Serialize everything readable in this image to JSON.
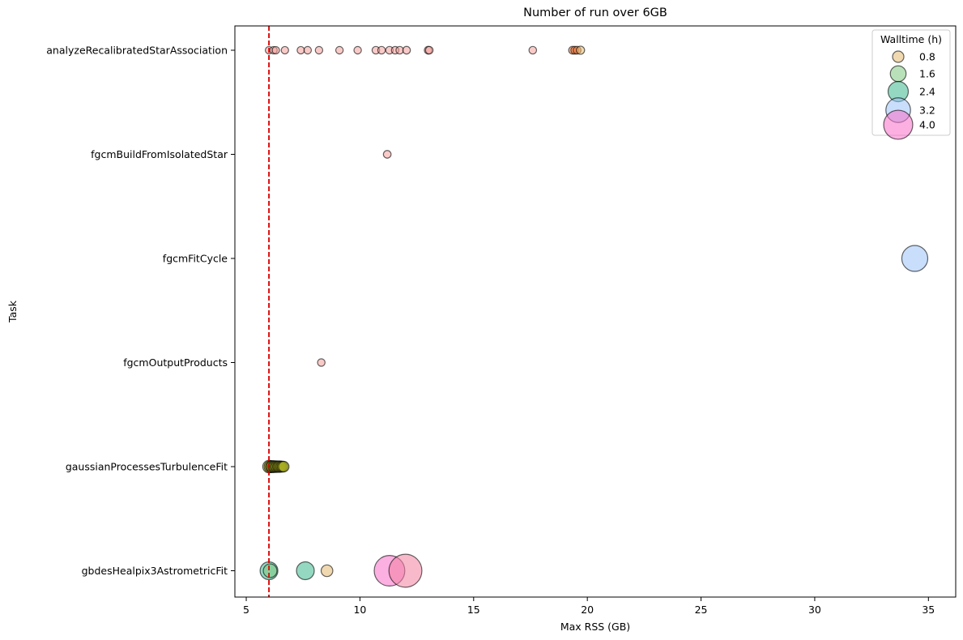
{
  "chart_data": {
    "type": "scatter",
    "title": "Number of run over 6GB",
    "xlabel": "Max RSS (GB)",
    "ylabel": "Task",
    "xlim": [
      4.5,
      36.2
    ],
    "xticks": [
      5,
      10,
      15,
      20,
      25,
      30,
      35
    ],
    "xtick_labels": [
      "5",
      "10",
      "15",
      "20",
      "25",
      "30",
      "35"
    ],
    "categories": [
      "analyzeRecalibratedStarAssociation",
      "fgcmBuildFromIsolatedStar",
      "fgcmFitCycle",
      "fgcmOutputProducts",
      "gaussianProcessesTurbulenceFit",
      "gbdesHealpix3AstrometricFit"
    ],
    "threshold": {
      "value": 6,
      "color": "#e00000",
      "style": "dashed"
    },
    "colors": {
      "red": "#f4a09a",
      "orange": "#f47a3c",
      "tan": "#e3b870",
      "olive": "#a8ad20",
      "teal": "#3db890",
      "sky": "#9cc2f8",
      "pink": "#f870c8",
      "rose": "#f27fa0",
      "lightgreen": "#7fc97f"
    },
    "points": [
      {
        "task": "analyzeRecalibratedStarAssociation",
        "x": 6.0,
        "walltime": 0.02,
        "color": "red"
      },
      {
        "task": "analyzeRecalibratedStarAssociation",
        "x": 6.2,
        "walltime": 0.02,
        "color": "red"
      },
      {
        "task": "analyzeRecalibratedStarAssociation",
        "x": 6.3,
        "walltime": 0.02,
        "color": "red"
      },
      {
        "task": "analyzeRecalibratedStarAssociation",
        "x": 6.7,
        "walltime": 0.02,
        "color": "red"
      },
      {
        "task": "analyzeRecalibratedStarAssociation",
        "x": 7.4,
        "walltime": 0.02,
        "color": "red"
      },
      {
        "task": "analyzeRecalibratedStarAssociation",
        "x": 7.7,
        "walltime": 0.03,
        "color": "red"
      },
      {
        "task": "analyzeRecalibratedStarAssociation",
        "x": 8.2,
        "walltime": 0.03,
        "color": "red"
      },
      {
        "task": "analyzeRecalibratedStarAssociation",
        "x": 9.1,
        "walltime": 0.03,
        "color": "red"
      },
      {
        "task": "analyzeRecalibratedStarAssociation",
        "x": 9.9,
        "walltime": 0.03,
        "color": "red"
      },
      {
        "task": "analyzeRecalibratedStarAssociation",
        "x": 10.7,
        "walltime": 0.05,
        "color": "red"
      },
      {
        "task": "analyzeRecalibratedStarAssociation",
        "x": 10.95,
        "walltime": 0.05,
        "color": "red"
      },
      {
        "task": "analyzeRecalibratedStarAssociation",
        "x": 11.3,
        "walltime": 0.05,
        "color": "red"
      },
      {
        "task": "analyzeRecalibratedStarAssociation",
        "x": 11.55,
        "walltime": 0.04,
        "color": "red"
      },
      {
        "task": "analyzeRecalibratedStarAssociation",
        "x": 11.75,
        "walltime": 0.05,
        "color": "red"
      },
      {
        "task": "analyzeRecalibratedStarAssociation",
        "x": 12.05,
        "walltime": 0.06,
        "color": "red"
      },
      {
        "task": "analyzeRecalibratedStarAssociation",
        "x": 13.0,
        "walltime": 0.06,
        "color": "red"
      },
      {
        "task": "analyzeRecalibratedStarAssociation",
        "x": 13.05,
        "walltime": 0.05,
        "color": "red"
      },
      {
        "task": "analyzeRecalibratedStarAssociation",
        "x": 17.6,
        "walltime": 0.05,
        "color": "red"
      },
      {
        "task": "analyzeRecalibratedStarAssociation",
        "x": 19.35,
        "walltime": 0.08,
        "color": "orange"
      },
      {
        "task": "analyzeRecalibratedStarAssociation",
        "x": 19.45,
        "walltime": 0.09,
        "color": "orange"
      },
      {
        "task": "analyzeRecalibratedStarAssociation",
        "x": 19.55,
        "walltime": 0.08,
        "color": "orange"
      },
      {
        "task": "analyzeRecalibratedStarAssociation",
        "x": 19.7,
        "walltime": 0.15,
        "color": "tan"
      },
      {
        "task": "fgcmBuildFromIsolatedStar",
        "x": 11.2,
        "walltime": 0.07,
        "color": "red"
      },
      {
        "task": "fgcmFitCycle",
        "x": 34.4,
        "walltime": 3.2,
        "color": "sky"
      },
      {
        "task": "fgcmOutputProducts",
        "x": 8.3,
        "walltime": 0.04,
        "color": "red"
      },
      {
        "task": "gaussianProcessesTurbulenceFit",
        "x": 6.0,
        "walltime": 0.9,
        "color": "olive"
      },
      {
        "task": "gaussianProcessesTurbulenceFit",
        "x": 6.05,
        "walltime": 0.8,
        "color": "olive"
      },
      {
        "task": "gaussianProcessesTurbulenceFit",
        "x": 6.1,
        "walltime": 0.7,
        "color": "olive"
      },
      {
        "task": "gaussianProcessesTurbulenceFit",
        "x": 6.15,
        "walltime": 0.8,
        "color": "olive"
      },
      {
        "task": "gaussianProcessesTurbulenceFit",
        "x": 6.2,
        "walltime": 0.7,
        "color": "olive"
      },
      {
        "task": "gaussianProcessesTurbulenceFit",
        "x": 6.25,
        "walltime": 0.75,
        "color": "olive"
      },
      {
        "task": "gaussianProcessesTurbulenceFit",
        "x": 6.3,
        "walltime": 0.7,
        "color": "olive"
      },
      {
        "task": "gaussianProcessesTurbulenceFit",
        "x": 6.35,
        "walltime": 0.7,
        "color": "olive"
      },
      {
        "task": "gaussianProcessesTurbulenceFit",
        "x": 6.4,
        "walltime": 0.65,
        "color": "olive"
      },
      {
        "task": "gaussianProcessesTurbulenceFit",
        "x": 6.45,
        "walltime": 0.7,
        "color": "olive"
      },
      {
        "task": "gaussianProcessesTurbulenceFit",
        "x": 6.5,
        "walltime": 0.65,
        "color": "olive"
      },
      {
        "task": "gaussianProcessesTurbulenceFit",
        "x": 6.55,
        "walltime": 0.6,
        "color": "olive"
      },
      {
        "task": "gaussianProcessesTurbulenceFit",
        "x": 6.6,
        "walltime": 0.6,
        "color": "olive"
      },
      {
        "task": "gaussianProcessesTurbulenceFit",
        "x": 6.65,
        "walltime": 0.55,
        "color": "olive"
      },
      {
        "task": "gbdesHealpix3AstrometricFit",
        "x": 6.0,
        "walltime": 1.8,
        "color": "teal"
      },
      {
        "task": "gbdesHealpix3AstrometricFit",
        "x": 6.05,
        "walltime": 1.1,
        "color": "lightgreen"
      },
      {
        "task": "gbdesHealpix3AstrometricFit",
        "x": 7.6,
        "walltime": 1.8,
        "color": "teal"
      },
      {
        "task": "gbdesHealpix3AstrometricFit",
        "x": 8.55,
        "walltime": 0.75,
        "color": "tan"
      },
      {
        "task": "gbdesHealpix3AstrometricFit",
        "x": 11.3,
        "walltime": 4.0,
        "color": "pink"
      },
      {
        "task": "gbdesHealpix3AstrometricFit",
        "x": 12.0,
        "walltime": 4.4,
        "color": "rose"
      }
    ],
    "legend": {
      "title": "Walltime (h)",
      "position": "top-right",
      "entries": [
        {
          "label": "0.8",
          "walltime": 0.8,
          "color": "tan"
        },
        {
          "label": "1.6",
          "walltime": 1.6,
          "color": "lightgreen"
        },
        {
          "label": "2.4",
          "walltime": 2.4,
          "color": "teal"
        },
        {
          "label": "3.2",
          "walltime": 3.2,
          "color": "sky"
        },
        {
          "label": "4.0",
          "walltime": 4.0,
          "color": "pink"
        }
      ]
    }
  }
}
